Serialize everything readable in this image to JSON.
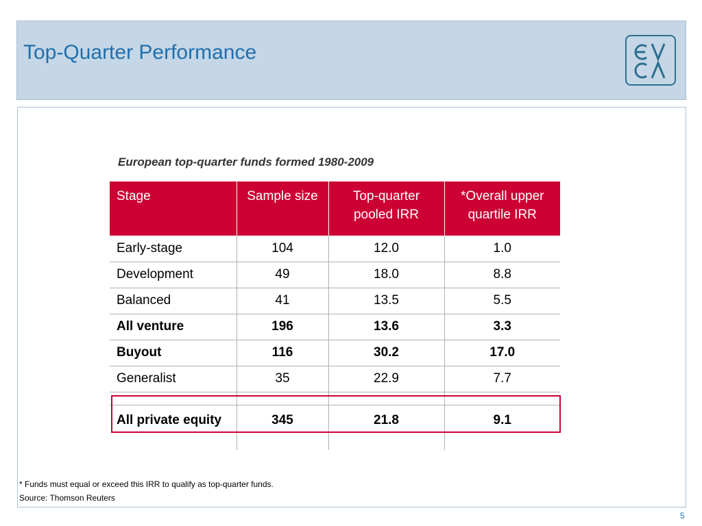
{
  "header": {
    "title": "Top-Quarter Performance",
    "logo_text": "EVCA",
    "logo_color": "#2b6f8f"
  },
  "subtitle": "European top-quarter funds formed 1980-2009",
  "table": {
    "columns": [
      "Stage",
      "Sample size",
      "Top-quarter pooled IRR",
      "*Overall upper quartile IRR"
    ],
    "rows": [
      {
        "stage": "Early-stage",
        "sample": "104",
        "pooled": "12.0",
        "upper": "1.0",
        "bold": false
      },
      {
        "stage": "Development",
        "sample": "49",
        "pooled": "18.0",
        "upper": "8.8",
        "bold": false
      },
      {
        "stage": "Balanced",
        "sample": "41",
        "pooled": "13.5",
        "upper": "5.5",
        "bold": false
      },
      {
        "stage": "All venture",
        "sample": "196",
        "pooled": "13.6",
        "upper": "3.3",
        "bold": true
      },
      {
        "stage": "Buyout",
        "sample": "116",
        "pooled": "30.2",
        "upper": "17.0",
        "bold": true
      },
      {
        "stage": "Generalist",
        "sample": "35",
        "pooled": "22.9",
        "upper": "7.7",
        "bold": false
      },
      {
        "stage": "All private equity",
        "sample": "345",
        "pooled": "21.8",
        "upper": "9.1",
        "bold": true
      }
    ],
    "header_color": "#cc0033",
    "highlight_color": "#cc0033"
  },
  "footnote": "* Funds must equal or exceed this IRR to qualify as top-quarter funds.",
  "source": "Source: Thomson Reuters",
  "page_number": "5"
}
